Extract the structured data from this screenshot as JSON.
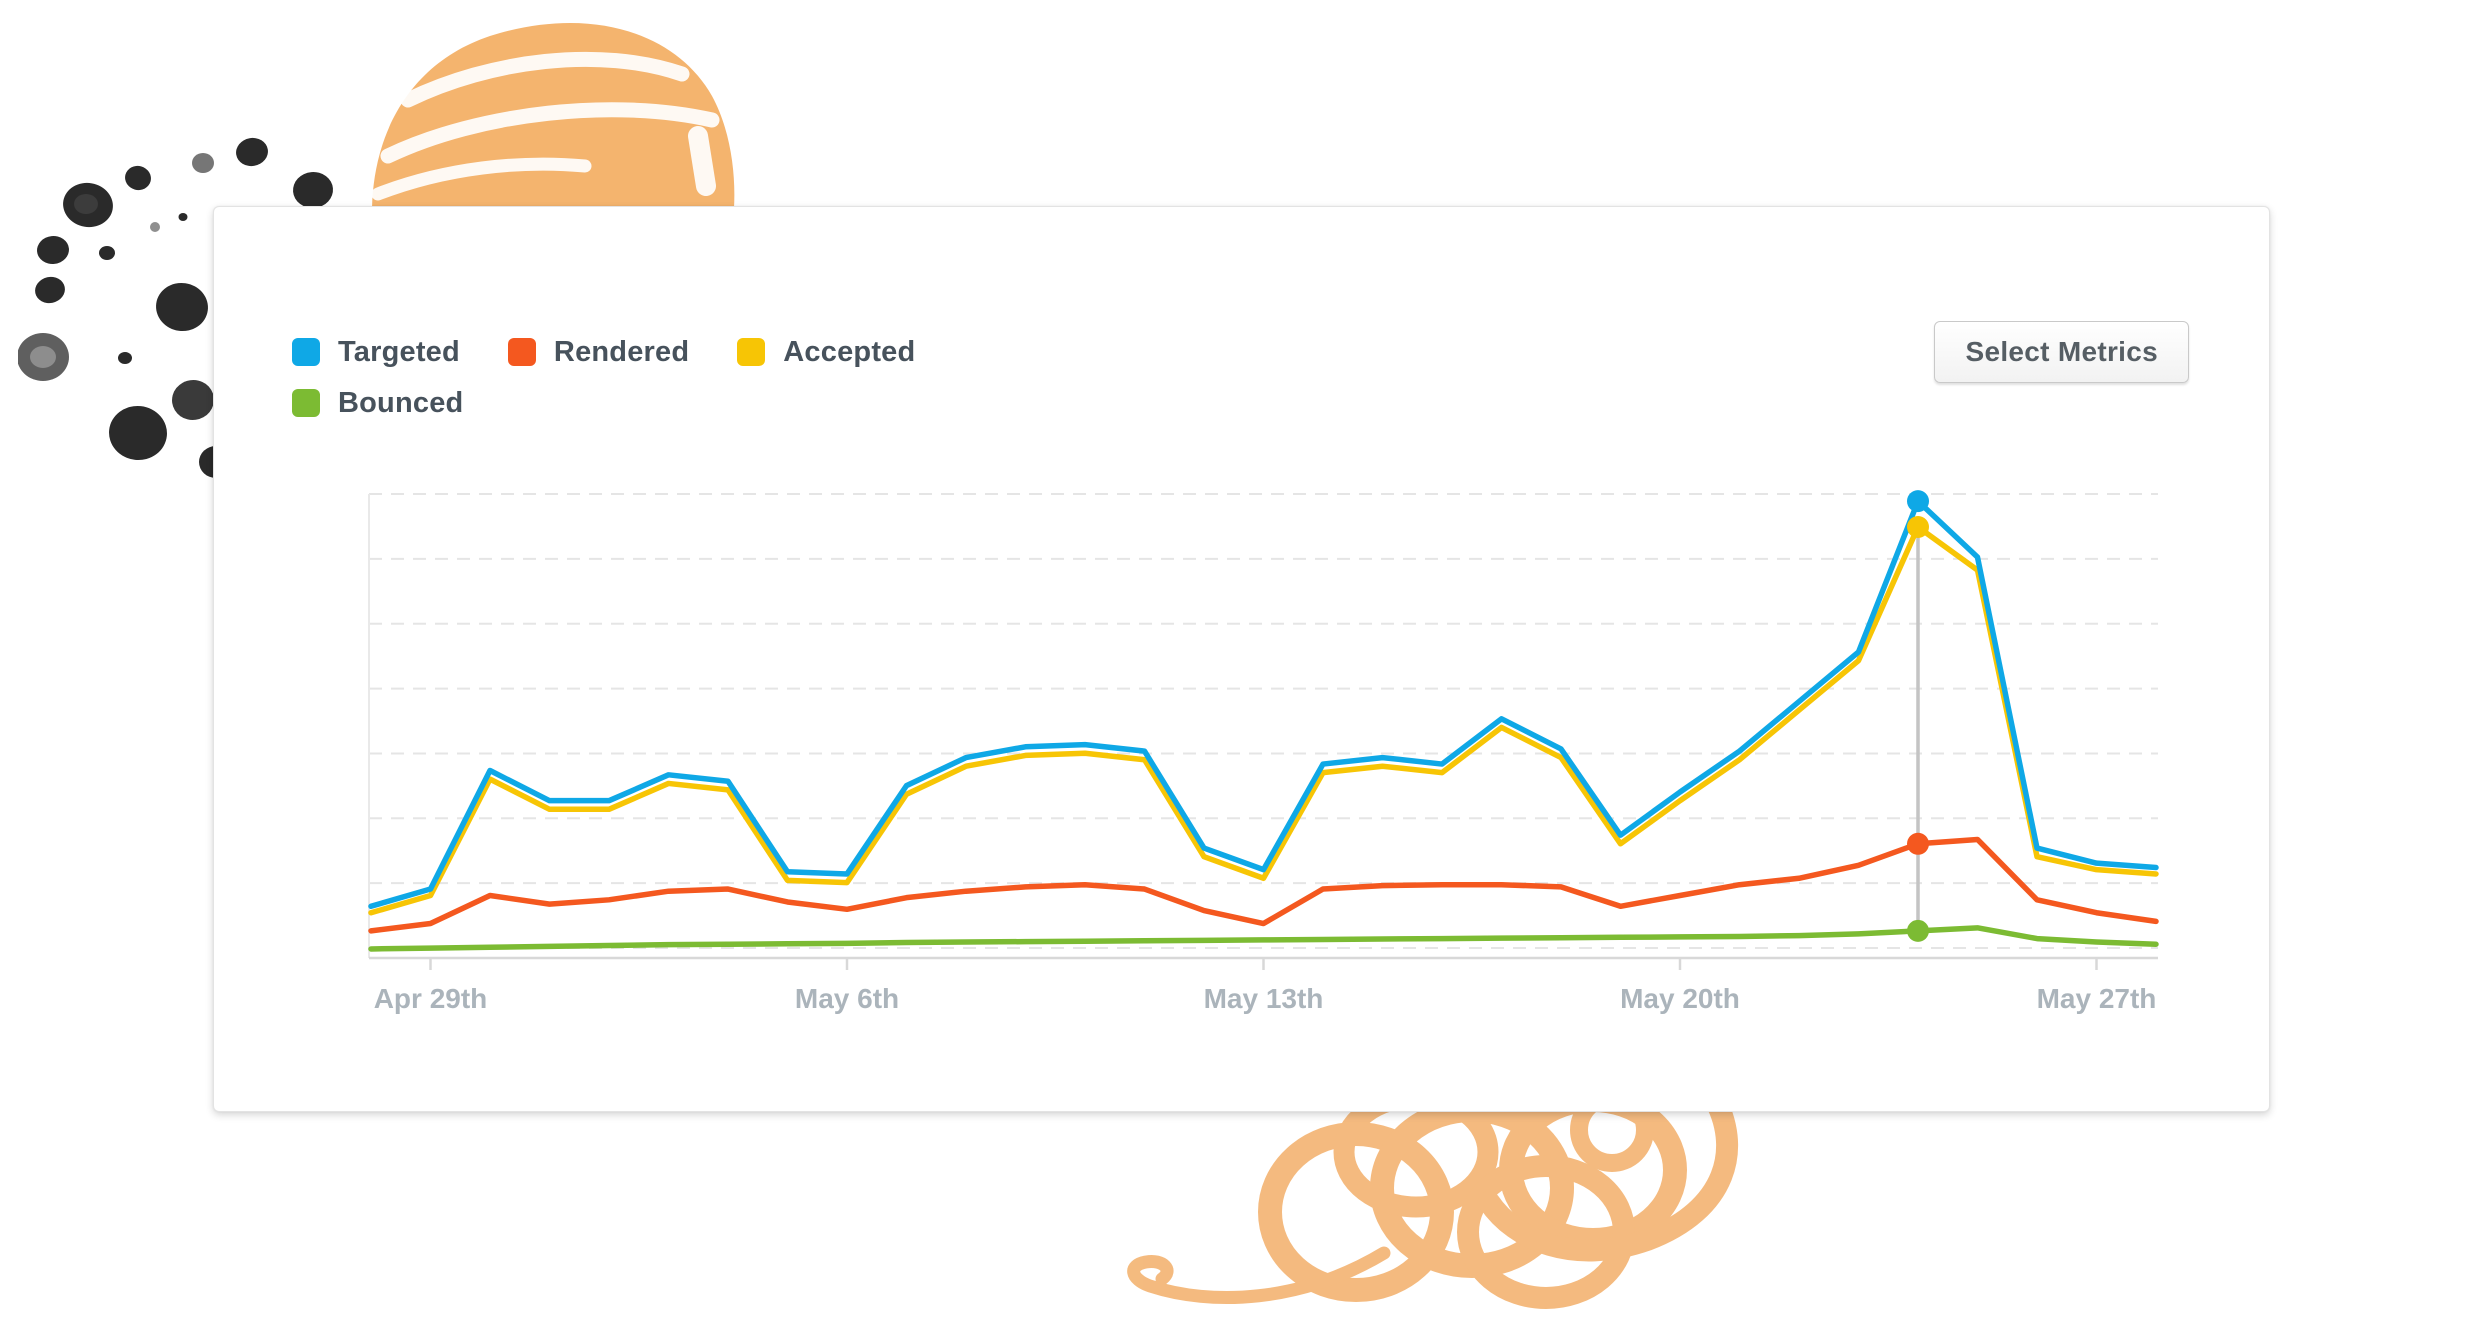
{
  "card": {
    "button_label": "Select Metrics"
  },
  "decorations": {
    "ball_color": "#F4B168",
    "ink_color": "#1a1a1a",
    "ink_soft_color": "#6f6f6f",
    "scribble_color": "#F2AC63"
  },
  "chart_data": {
    "type": "line",
    "title": "",
    "xlabel": "",
    "ylabel": "",
    "n_points": 31,
    "ylim": [
      0,
      110
    ],
    "grid": "horizontal-dashed",
    "legend_position": "top-left",
    "highlight_index": 26,
    "x_tick_labels": [
      {
        "index": 1,
        "label": "Apr 29th"
      },
      {
        "index": 8,
        "label": "May 6th"
      },
      {
        "index": 15,
        "label": "May 13th"
      },
      {
        "index": 22,
        "label": "May 20th"
      },
      {
        "index": 29,
        "label": "May 27th"
      }
    ],
    "series": [
      {
        "name": "Targeted",
        "color": "#0FA8E6",
        "values": [
          12,
          16,
          43.5,
          36.5,
          36.5,
          42.5,
          41,
          20,
          19.5,
          40,
          46.5,
          49,
          49.5,
          48,
          25.5,
          20.5,
          45,
          46.5,
          45,
          55.5,
          48.5,
          28.5,
          38.5,
          48,
          59.5,
          71,
          106,
          93,
          25.5,
          22,
          21
        ]
      },
      {
        "name": "Rendered",
        "color": "#F4581F",
        "values": [
          6.3,
          8,
          14.5,
          12.5,
          13.5,
          15.5,
          16,
          13,
          11.3,
          14,
          15.5,
          16.5,
          17,
          16,
          11,
          8,
          16,
          16.8,
          17,
          17,
          16.5,
          12,
          14.5,
          17,
          18.5,
          21.5,
          26.5,
          27.5,
          13.5,
          10.5,
          8.5
        ]
      },
      {
        "name": "Accepted",
        "color": "#F7C505",
        "values": [
          10.5,
          14.5,
          41.5,
          34.5,
          34.5,
          40.5,
          39,
          18,
          17.5,
          38,
          44.5,
          47,
          47.5,
          46,
          23.5,
          18.5,
          43,
          44.5,
          43,
          53.5,
          46.5,
          26.5,
          36.5,
          46,
          57.5,
          69,
          100,
          90,
          23.5,
          20.5,
          19.5
        ]
      },
      {
        "name": "Bounced",
        "color": "#7CBB33",
        "values": [
          2.1,
          2.3,
          2.5,
          2.7,
          2.9,
          3.1,
          3.2,
          3.3,
          3.4,
          3.6,
          3.7,
          3.8,
          3.9,
          4,
          4.1,
          4.2,
          4.3,
          4.4,
          4.5,
          4.6,
          4.7,
          4.8,
          4.9,
          5,
          5.2,
          5.6,
          6.3,
          7,
          4.5,
          3.7,
          3.2
        ]
      }
    ]
  }
}
